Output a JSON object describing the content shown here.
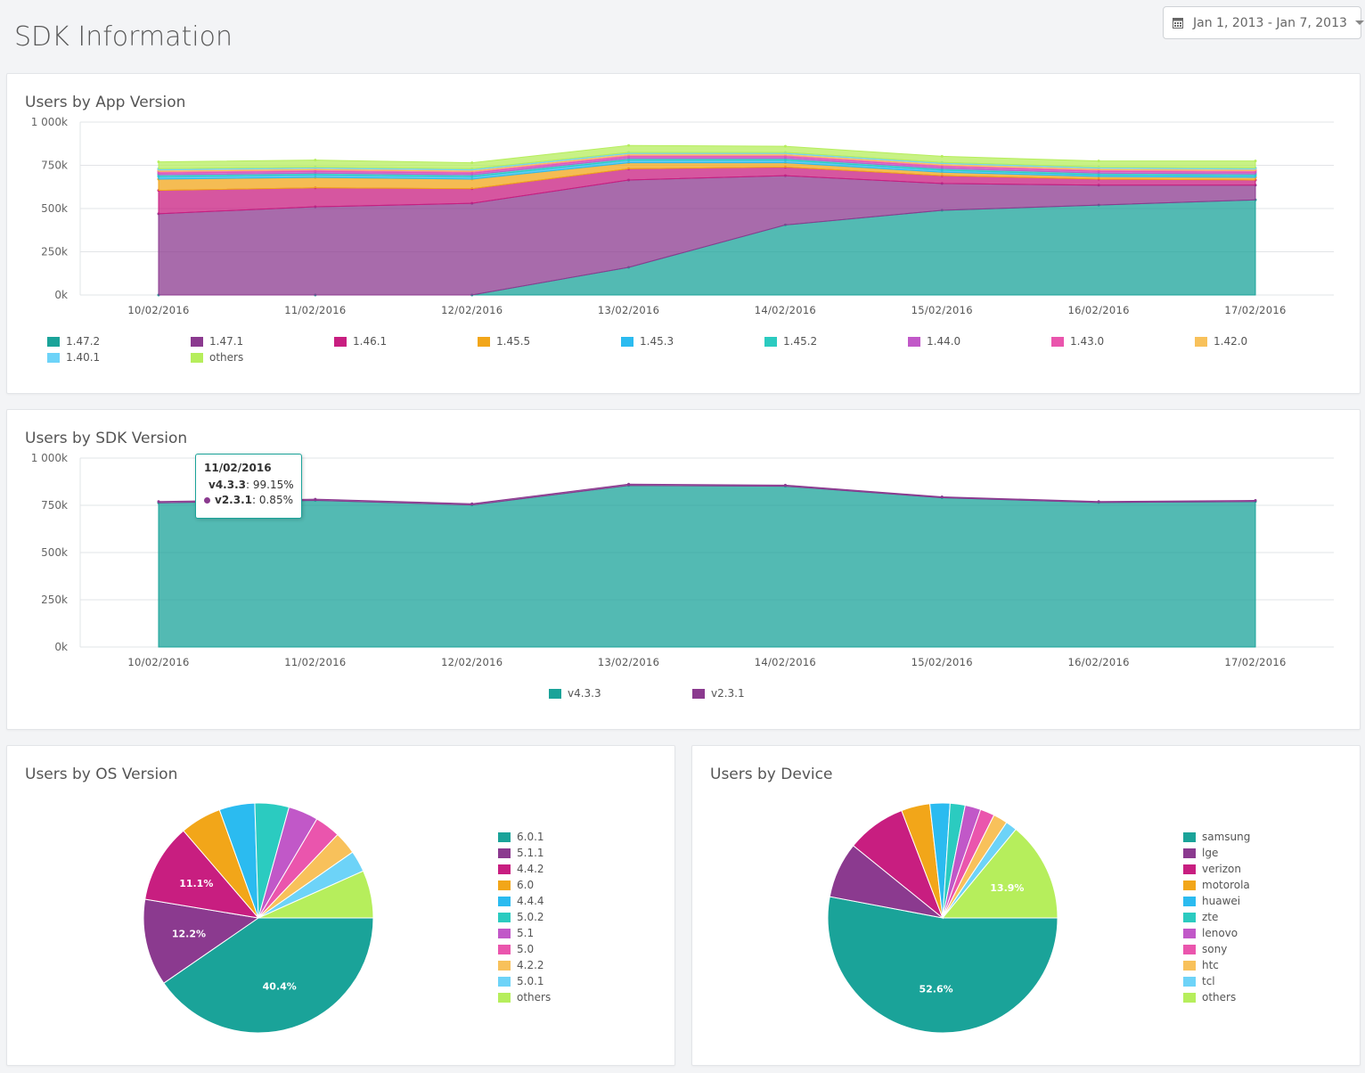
{
  "page": {
    "title": "SDK Information"
  },
  "date_range": {
    "label": "Jan 1, 2013 - Jan 7, 2013"
  },
  "colors": [
    "#1aa399",
    "#8b3a8f",
    "#c81e80",
    "#f2a619",
    "#2bbbf0",
    "#2bcbc0",
    "#c158c8",
    "#ea55ad",
    "#f8c15b",
    "#6dd3f8",
    "#b6ee5c"
  ],
  "charts": {
    "app_version": {
      "title": "Users by App Version",
      "legend": [
        "1.47.2",
        "1.47.1",
        "1.46.1",
        "1.45.5",
        "1.45.3",
        "1.45.2",
        "1.44.0",
        "1.43.0",
        "1.42.0",
        "1.40.1",
        "others"
      ]
    },
    "sdk_version": {
      "title": "Users by SDK Version",
      "legend": [
        "v4.3.3",
        "v2.3.1"
      ],
      "tooltip": {
        "date": "11/02/2016",
        "rows": [
          {
            "name": "v4.3.3",
            "value": "99.15%",
            "color": "#1aa399"
          },
          {
            "name": "v2.3.1",
            "value": "0.85%",
            "color": "#8b3a8f"
          }
        ]
      }
    },
    "os_version": {
      "title": "Users by OS Version"
    },
    "device": {
      "title": "Users by Device"
    }
  },
  "chart_data": [
    {
      "type": "area",
      "title": "Users by App Version",
      "stacked": true,
      "x": [
        "10/02/2016",
        "11/02/2016",
        "12/02/2016",
        "13/02/2016",
        "14/02/2016",
        "15/02/2016",
        "16/02/2016",
        "17/02/2016"
      ],
      "y_ticks": [
        "0k",
        "250k",
        "500k",
        "750k",
        "1 000k"
      ],
      "ylim": [
        0,
        1000000
      ],
      "series": [
        {
          "name": "1.47.2",
          "values": [
            0,
            0,
            0,
            160000,
            405000,
            490000,
            520000,
            550000
          ]
        },
        {
          "name": "1.47.1",
          "values": [
            470000,
            510000,
            530000,
            505000,
            285000,
            155000,
            115000,
            85000
          ]
        },
        {
          "name": "1.46.1",
          "values": [
            135000,
            110000,
            85000,
            65000,
            50000,
            45000,
            35000,
            30000
          ]
        },
        {
          "name": "1.45.5",
          "values": [
            65000,
            60000,
            55000,
            35000,
            25000,
            20000,
            15000,
            15000
          ]
        },
        {
          "name": "1.45.3",
          "values": [
            15000,
            15000,
            15000,
            15000,
            15000,
            12000,
            10000,
            10000
          ]
        },
        {
          "name": "1.45.2",
          "values": [
            10000,
            10000,
            10000,
            10000,
            10000,
            10000,
            10000,
            10000
          ]
        },
        {
          "name": "1.44.0",
          "values": [
            10000,
            10000,
            10000,
            10000,
            10000,
            10000,
            10000,
            10000
          ]
        },
        {
          "name": "1.43.0",
          "values": [
            10000,
            10000,
            10000,
            10000,
            10000,
            10000,
            10000,
            10000
          ]
        },
        {
          "name": "1.42.0",
          "values": [
            8000,
            8000,
            8000,
            8000,
            8000,
            8000,
            8000,
            8000
          ]
        },
        {
          "name": "1.40.1",
          "values": [
            7000,
            7000,
            7000,
            7000,
            7000,
            7000,
            7000,
            7000
          ]
        },
        {
          "name": "others",
          "values": [
            40000,
            40000,
            35000,
            40000,
            35000,
            35000,
            35000,
            40000
          ]
        }
      ],
      "grid": true,
      "legend_position": "bottom"
    },
    {
      "type": "area",
      "title": "Users by SDK Version",
      "stacked": true,
      "x": [
        "10/02/2016",
        "11/02/2016",
        "12/02/2016",
        "13/02/2016",
        "14/02/2016",
        "15/02/2016",
        "16/02/2016",
        "17/02/2016"
      ],
      "y_ticks": [
        "0k",
        "250k",
        "500k",
        "750k",
        "1 000k"
      ],
      "ylim": [
        0,
        1000000
      ],
      "series": [
        {
          "name": "v4.3.3",
          "values": [
            763000,
            776000,
            752000,
            855000,
            851000,
            790000,
            765000,
            770000
          ]
        },
        {
          "name": "v2.3.1",
          "values": [
            7000,
            6700,
            6000,
            7000,
            6000,
            5000,
            5000,
            6000
          ]
        }
      ],
      "grid": true,
      "legend_position": "bottom"
    },
    {
      "type": "pie",
      "title": "Users by OS Version",
      "categories": [
        "6.0.1",
        "5.1.1",
        "4.4.2",
        "6.0",
        "4.4.4",
        "5.0.2",
        "5.1",
        "5.0",
        "4.2.2",
        "5.0.1",
        "others"
      ],
      "values": [
        40.4,
        12.2,
        11.1,
        5.8,
        5.0,
        4.8,
        4.2,
        3.6,
        3.2,
        3.0,
        6.7
      ],
      "labels": {
        "6.0.1": "40.4%",
        "5.1.1": "12.2%",
        "4.4.2": "11.1%"
      },
      "legend_position": "right"
    },
    {
      "type": "pie",
      "title": "Users by Device",
      "categories": [
        "samsung",
        "lge",
        "verizon",
        "motorola",
        "huawei",
        "zte",
        "lenovo",
        "sony",
        "htc",
        "tcl",
        "others"
      ],
      "values": [
        52.6,
        7.8,
        8.3,
        4.0,
        2.8,
        2.1,
        2.2,
        2.0,
        2.0,
        1.6,
        13.9
      ],
      "labels": {
        "samsung": "52.6%",
        "others": "13.9%"
      },
      "legend_position": "right"
    }
  ]
}
